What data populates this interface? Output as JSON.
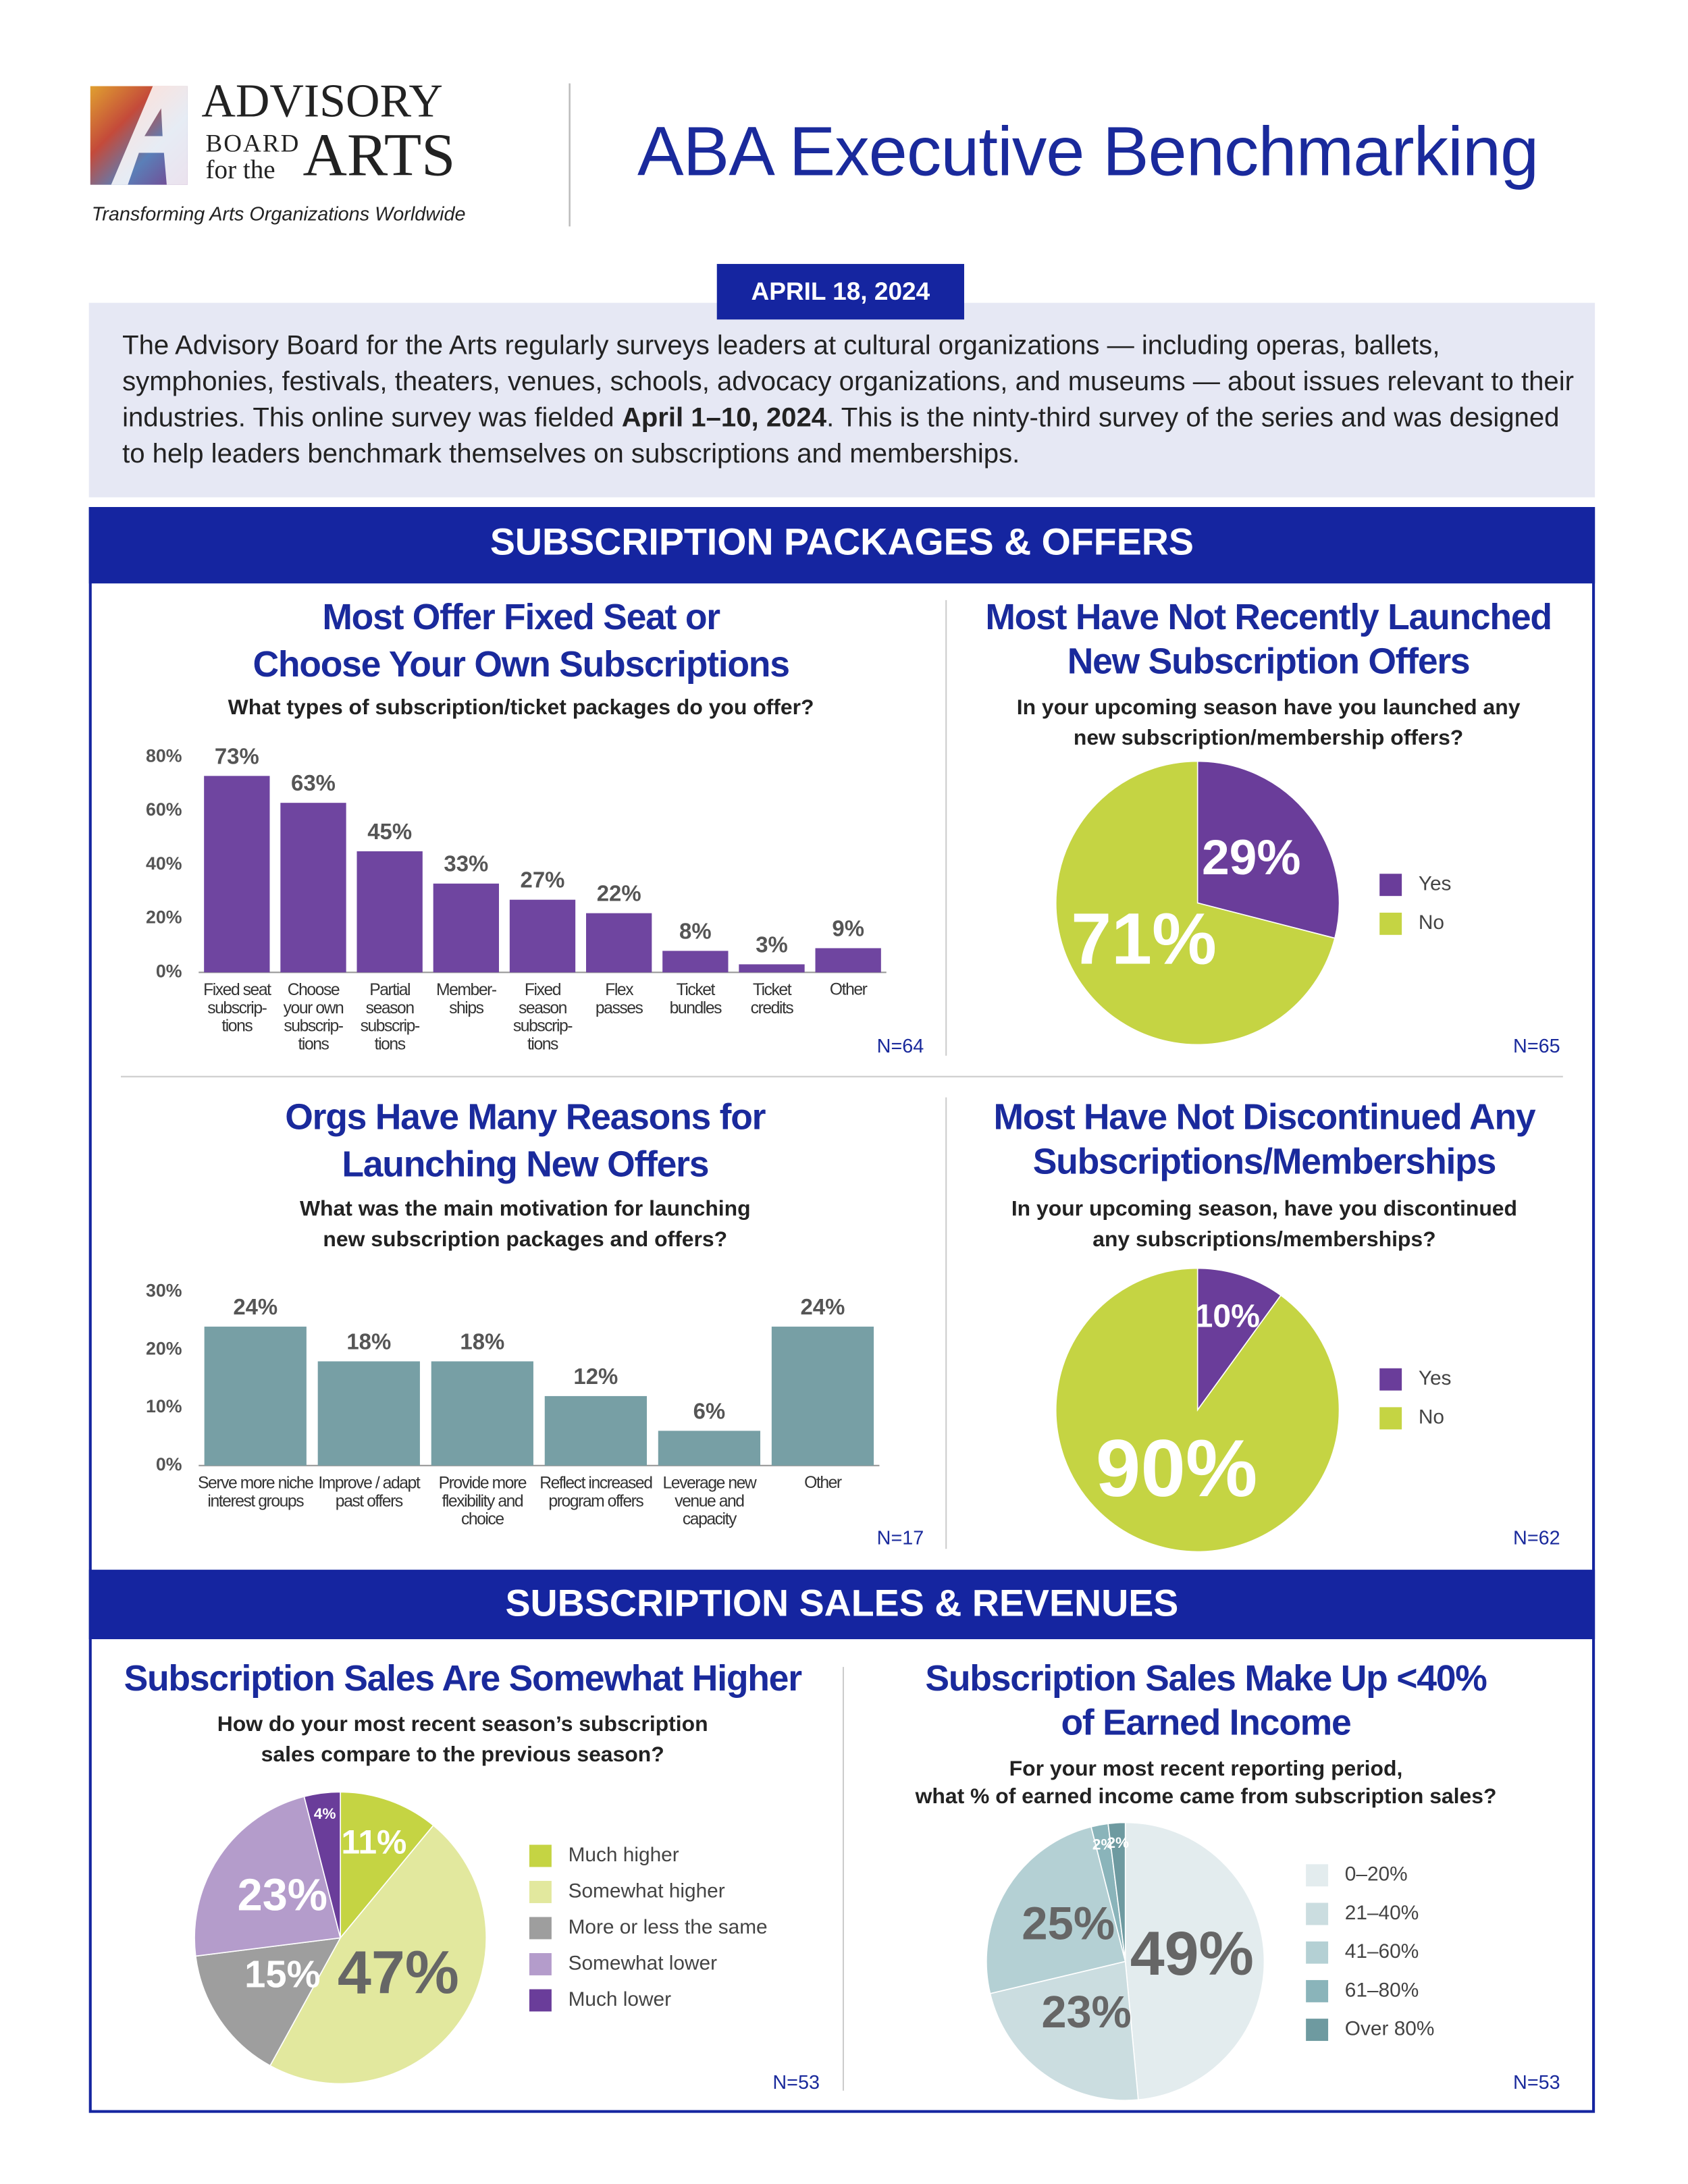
{
  "header": {
    "logo": [
      "ADVISORY",
      "BOARD",
      "for the",
      "ARTS"
    ],
    "tagline": "Transforming Arts Organizations Worldwide",
    "title": "ABA Executive Benchmarking",
    "date": "APRIL 18, 2024",
    "intro": [
      "The Advisory Board for the Arts regularly surveys leaders at cultural organizations — including operas, ballets, symphonies, festivals, theaters, venues, schools, advocacy organizations, and museums — about issues relevant to their industries. This online survey was fielded ",
      "April 1–10, 2024",
      ". This is the ninty-third survey of the series and was designed to help leaders benchmark themselves on subscriptions and memberships."
    ]
  },
  "sections": [
    "SUBSCRIPTION PACKAGES & OFFERS",
    "SUBSCRIPTION SALES & REVENUES"
  ],
  "chart_data": [
    {
      "type": "bar",
      "title": [
        "Most Offer Fixed Seat or",
        "Choose Your Own Subscriptions"
      ],
      "subtitle": [
        "What types of subscription/ticket packages do you offer?"
      ],
      "categories": [
        "Fixed seat\nsubscrip-\ntions",
        "Choose\nyour own\nsubscrip-\ntions",
        "Partial\nseason\nsubscrip-\ntions",
        "Member-\nships",
        "Fixed\nseason\nsubscrip-\ntions",
        "Flex\npasses",
        "Ticket\nbundles",
        "Ticket\ncredits",
        "Other"
      ],
      "values": [
        73,
        63,
        45,
        33,
        27,
        22,
        8,
        3,
        9
      ],
      "value_labels": [
        "73%",
        "63%",
        "45%",
        "33%",
        "27%",
        "22%",
        "8%",
        "3%",
        "9%"
      ],
      "color": "#6f45a0",
      "ylim": [
        0,
        80
      ],
      "yticks": [
        {
          "value": 0,
          "label": "0%"
        },
        {
          "value": 20,
          "label": "20%"
        },
        {
          "value": 40,
          "label": "40%"
        },
        {
          "value": 60,
          "label": "60%"
        },
        {
          "value": 80,
          "label": "80%"
        }
      ],
      "note": "N=64"
    },
    {
      "type": "pie",
      "title": [
        "Most Have Not Recently Launched",
        "New Subscription Offers"
      ],
      "subtitle": [
        "In your upcoming season have you launched any",
        "new subscription/membership offers?"
      ],
      "categories": [
        "Yes",
        "No"
      ],
      "values": [
        29,
        71
      ],
      "value_labels": [
        "29%",
        "71%"
      ],
      "colors": [
        "#6a3d9a",
        "#c5d443"
      ],
      "note": "N=65"
    },
    {
      "type": "bar",
      "title": [
        "Orgs Have Many Reasons for",
        "Launching New Offers"
      ],
      "subtitle": [
        "What was the main motivation for launching",
        "new subscription packages and offers?"
      ],
      "categories": [
        "Serve more niche\ninterest groups",
        "Improve / adapt\npast offers",
        "Provide more\nflexibility and\nchoice",
        "Reflect increased\nprogram offers",
        "Leverage new\nvenue and\ncapacity",
        "Other"
      ],
      "values": [
        24,
        18,
        18,
        12,
        6,
        24
      ],
      "value_labels": [
        "24%",
        "18%",
        "18%",
        "12%",
        "6%",
        "24%"
      ],
      "color": "#779fa5",
      "ylim": [
        0,
        30
      ],
      "yticks": [
        {
          "value": 0,
          "label": "0%"
        },
        {
          "value": 10,
          "label": "10%"
        },
        {
          "value": 20,
          "label": "20%"
        },
        {
          "value": 30,
          "label": "30%"
        }
      ],
      "note": "N=17"
    },
    {
      "type": "pie",
      "title": [
        "Most Have Not Discontinued Any",
        "Subscriptions/Memberships"
      ],
      "subtitle": [
        "In your upcoming season, have you discontinued",
        "any subscriptions/memberships?"
      ],
      "categories": [
        "Yes",
        "No"
      ],
      "values": [
        10,
        90
      ],
      "value_labels": [
        "10%",
        "90%"
      ],
      "colors": [
        "#6a3d9a",
        "#c5d443"
      ],
      "note": "N=62"
    },
    {
      "type": "pie",
      "title": [
        "Subscription Sales Are Somewhat Higher"
      ],
      "subtitle": [
        "How do your most recent season’s subscription",
        "sales compare to the previous season?"
      ],
      "categories": [
        "Much higher",
        "Somewhat higher",
        "More or less the same",
        "Somewhat lower",
        "Much lower"
      ],
      "values": [
        11,
        47,
        15,
        23,
        4
      ],
      "value_labels": [
        "11%",
        "47%",
        "15%",
        "23%",
        "4%"
      ],
      "colors": [
        "#c5d443",
        "#e2e89e",
        "#9e9e9e",
        "#b49ccb",
        "#6a3d9a"
      ],
      "note": "N=53"
    },
    {
      "type": "pie",
      "title": [
        "Subscription Sales Make Up <40%",
        "of Earned Income"
      ],
      "subtitle": [
        "For your most recent reporting period,",
        "what % of earned income came from subscription sales?"
      ],
      "categories": [
        "0–20%",
        "21–40%",
        "41–60%",
        "61–80%",
        "Over 80%"
      ],
      "values": [
        49,
        23,
        25,
        2,
        2
      ],
      "value_labels": [
        "49%",
        "23%",
        "25%",
        "2%",
        "2%"
      ],
      "colors": [
        "#e3ecee",
        "#cbdde0",
        "#b4d0d4",
        "#8ab4ba",
        "#6e9aa0"
      ],
      "note": "N=53"
    }
  ]
}
